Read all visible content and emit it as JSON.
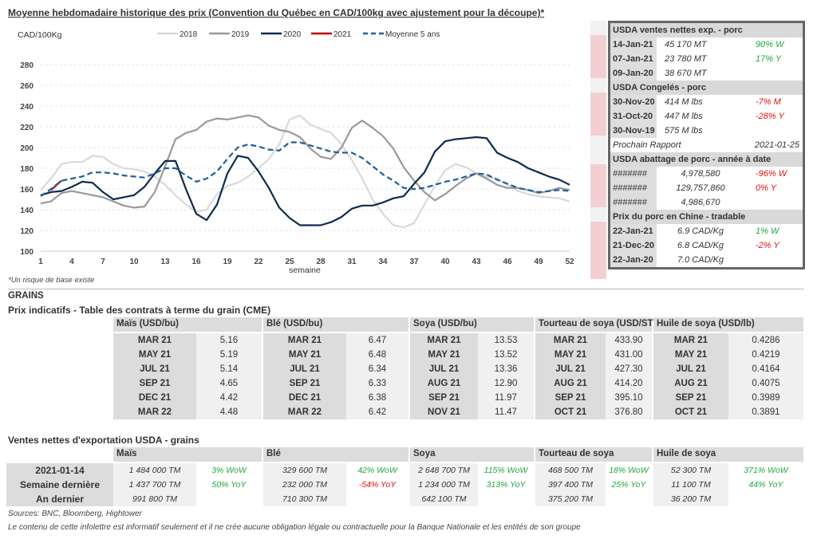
{
  "chart_data": {
    "type": "line",
    "title": "Moyenne hebdomadaire historique des prix (Convention du Québec en CAD/100kg avec ajustement pour la découpe)*",
    "ylabel": "CAD/100Kg",
    "xlabel": "semaine",
    "ylim": [
      100,
      280
    ],
    "yticks": [
      100,
      120,
      140,
      160,
      180,
      200,
      220,
      240,
      260,
      280
    ],
    "xlim": [
      1,
      52
    ],
    "xticks": [
      1,
      4,
      7,
      10,
      13,
      16,
      19,
      22,
      25,
      28,
      31,
      34,
      37,
      40,
      43,
      46,
      49,
      52
    ],
    "grid": true,
    "legend_position": "top",
    "series": [
      {
        "name": "2018",
        "color": "#d9d9d9",
        "dash": false,
        "start_week": 1,
        "values": [
          159,
          170,
          184,
          186,
          186,
          192,
          191,
          184,
          180,
          179,
          177,
          172,
          164,
          154,
          145,
          138,
          140,
          155,
          163,
          166,
          172,
          180,
          189,
          203,
          227,
          231,
          222,
          218,
          214,
          203,
          188,
          170,
          150,
          136,
          125,
          123,
          127,
          145,
          163,
          178,
          184,
          181,
          175,
          172,
          170,
          164,
          158,
          155,
          153,
          152,
          151,
          148
        ]
      },
      {
        "name": "2019",
        "color": "#999999",
        "dash": false,
        "start_week": 1,
        "values": [
          146,
          148,
          156,
          158,
          156,
          154,
          152,
          148,
          144,
          142,
          143,
          157,
          182,
          208,
          214,
          217,
          225,
          228,
          227,
          229,
          231,
          229,
          221,
          217,
          215,
          210,
          199,
          191,
          189,
          200,
          219,
          226,
          219,
          211,
          199,
          181,
          168,
          157,
          149,
          155,
          163,
          170,
          175,
          170,
          164,
          161,
          161,
          159,
          156,
          158,
          161,
          159
        ]
      },
      {
        "name": "2020",
        "color": "#0d2a4d",
        "dash": false,
        "start_week": 1,
        "values": [
          154,
          157,
          158,
          162,
          167,
          166,
          157,
          150,
          152,
          154,
          162,
          175,
          187,
          187,
          160,
          136,
          130,
          145,
          175,
          192,
          190,
          177,
          161,
          142,
          132,
          125,
          125,
          125,
          128,
          133,
          141,
          144,
          144,
          147,
          151,
          153,
          165,
          176,
          196,
          206,
          208,
          209,
          210,
          209,
          195,
          190,
          186,
          180,
          176,
          172,
          169,
          164
        ]
      },
      {
        "name": "2021",
        "color": "#c00000",
        "dash": false,
        "start_week": 2,
        "values": [
          159,
          168
        ]
      },
      {
        "name": "Moyenne 5 ans",
        "color": "#1f5f99",
        "dash": true,
        "start_week": 1,
        "values": [
          153,
          160,
          168,
          170,
          172,
          176,
          176,
          175,
          173,
          172,
          171,
          175,
          180,
          180,
          173,
          167,
          170,
          177,
          189,
          200,
          203,
          201,
          198,
          197,
          205,
          205,
          202,
          199,
          196,
          195,
          195,
          190,
          182,
          174,
          168,
          161,
          160,
          161,
          164,
          167,
          169,
          172,
          175,
          174,
          169,
          165,
          161,
          159,
          157,
          158,
          159,
          158
        ]
      }
    ],
    "footnote": "*Un risque de base existe"
  },
  "usda_panel": {
    "sections": [
      {
        "title": "USDA ventes nettes exp. - porc",
        "rows": [
          {
            "date": "14-Jan-21",
            "value": "45 170  MT",
            "change": "90% W",
            "color": "green"
          },
          {
            "date": "07-Jan-21",
            "value": "23 780  MT",
            "change": "17% Y",
            "color": "green"
          },
          {
            "date": "09-Jan-20",
            "value": "38 670  MT",
            "change": "",
            "color": ""
          }
        ]
      },
      {
        "title": "USDA Congelés - porc",
        "rows": [
          {
            "date": "30-Nov-20",
            "value": "414 M lbs",
            "change": "-7% M",
            "color": "red"
          },
          {
            "date": "31-Oct-20",
            "value": "447 M lbs",
            "change": "-28% Y",
            "color": "red"
          },
          {
            "date": "30-Nov-19",
            "value": "575 M lbs",
            "change": "",
            "color": ""
          }
        ],
        "note_label": "Prochain Rapport",
        "note_value": "2021-01-25"
      },
      {
        "title": "USDA abattage de porc - année à date",
        "hash": true,
        "rows": [
          {
            "date": "#######",
            "value": "4,978,580",
            "change": "-96% W",
            "color": "red"
          },
          {
            "date": "#######",
            "value": "129,757,860",
            "change": "0% Y",
            "color": "red"
          },
          {
            "date": "#######",
            "value": "4,986,670",
            "change": "",
            "color": ""
          }
        ]
      },
      {
        "title": "Prix du porc en Chine - tradable",
        "rows": [
          {
            "date": "22-Jan-21",
            "value": "6.9 CAD/Kg",
            "change": "1% W",
            "color": "green"
          },
          {
            "date": "21-Dec-20",
            "value": "6.8 CAD/Kg",
            "change": "-2% Y",
            "color": "red"
          },
          {
            "date": "22-Jan-20",
            "value": "7.0 CAD/Kg",
            "change": "",
            "color": ""
          }
        ]
      }
    ]
  },
  "grains": {
    "section_title": "GRAINS",
    "futures_title": "Prix indicatifs - Table des contrats à terme du grain (CME)",
    "futures": [
      {
        "name": "Maïs (USD/bu)",
        "rows": [
          [
            "MAR 21",
            "5.16"
          ],
          [
            "MAY 21",
            "5.19"
          ],
          [
            "JUL 21",
            "5.14"
          ],
          [
            "SEP 21",
            "4.65"
          ],
          [
            "DEC 21",
            "4.42"
          ],
          [
            "MAR 22",
            "4.48"
          ]
        ]
      },
      {
        "name": "Blé (USD/bu)",
        "rows": [
          [
            "MAR 21",
            "6.47"
          ],
          [
            "MAY 21",
            "6.48"
          ],
          [
            "JUL 21",
            "6.34"
          ],
          [
            "SEP 21",
            "6.33"
          ],
          [
            "DEC 21",
            "6.38"
          ],
          [
            "MAR 22",
            "6.42"
          ]
        ]
      },
      {
        "name": "Soya (USD/bu)",
        "rows": [
          [
            "MAR 21",
            "13.53"
          ],
          [
            "MAY 21",
            "13.52"
          ],
          [
            "JUL 21",
            "13.36"
          ],
          [
            "AUG 21",
            "12.90"
          ],
          [
            "SEP 21",
            "11.97"
          ],
          [
            "NOV 21",
            "11.47"
          ]
        ]
      },
      {
        "name": "Tourteau de soya (USD/ST)",
        "rows": [
          [
            "MAR 21",
            "433.90"
          ],
          [
            "MAY 21",
            "431.00"
          ],
          [
            "JUL 21",
            "427.30"
          ],
          [
            "AUG 21",
            "414.20"
          ],
          [
            "SEP 21",
            "395.10"
          ],
          [
            "OCT 21",
            "376.80"
          ]
        ]
      },
      {
        "name": "Huile de soya (USD/lb)",
        "rows": [
          [
            "MAR 21",
            "0.4286"
          ],
          [
            "MAY 21",
            "0.4219"
          ],
          [
            "JUL 21",
            "0.4164"
          ],
          [
            "AUG 21",
            "0.4075"
          ],
          [
            "SEP 21",
            "0.3989"
          ],
          [
            "OCT 21",
            "0.3891"
          ]
        ]
      }
    ],
    "exports_title": "Ventes nettes d'exportation USDA - grains",
    "export_row_labels": [
      "2021-01-14",
      "Semaine dernière",
      "An dernier"
    ],
    "exports": [
      {
        "name": "Maïs",
        "rows": [
          [
            "1 484 000 TM",
            "3% WoW",
            "green"
          ],
          [
            "1 437 700 TM",
            "50% YoY",
            "green"
          ],
          [
            "991 800 TM",
            "",
            ""
          ]
        ]
      },
      {
        "name": "Blé",
        "rows": [
          [
            "329 600 TM",
            "42% WoW",
            "green"
          ],
          [
            "232 000 TM",
            "-54% YoY",
            "red"
          ],
          [
            "710 300 TM",
            "",
            ""
          ]
        ]
      },
      {
        "name": "Soya",
        "rows": [
          [
            "2 648 700 TM",
            "115% WoW",
            "green"
          ],
          [
            "1 234 000 TM",
            "313% YoY",
            "green"
          ],
          [
            "642 100 TM",
            "",
            ""
          ]
        ]
      },
      {
        "name": "Tourteau de soya",
        "rows": [
          [
            "468 500 TM",
            "18% WoW",
            "green"
          ],
          [
            "397 400 TM",
            "25% YoY",
            "green"
          ],
          [
            "375 200 TM",
            "",
            ""
          ]
        ]
      },
      {
        "name": "Huile de soya",
        "rows": [
          [
            "52 300 TM",
            "371% WoW",
            "green"
          ],
          [
            "11 100 TM",
            "44% YoY",
            "green"
          ],
          [
            "36 200 TM",
            "",
            ""
          ]
        ]
      }
    ],
    "sources": "Sources: BNC, Bloomberg, Hightower",
    "disclaimer": "Le contenu de cette infolettre est informatif seulement et il ne crée aucune obligation légale ou contractuelle pour la Banque Nationale et les entités de son groupe"
  }
}
